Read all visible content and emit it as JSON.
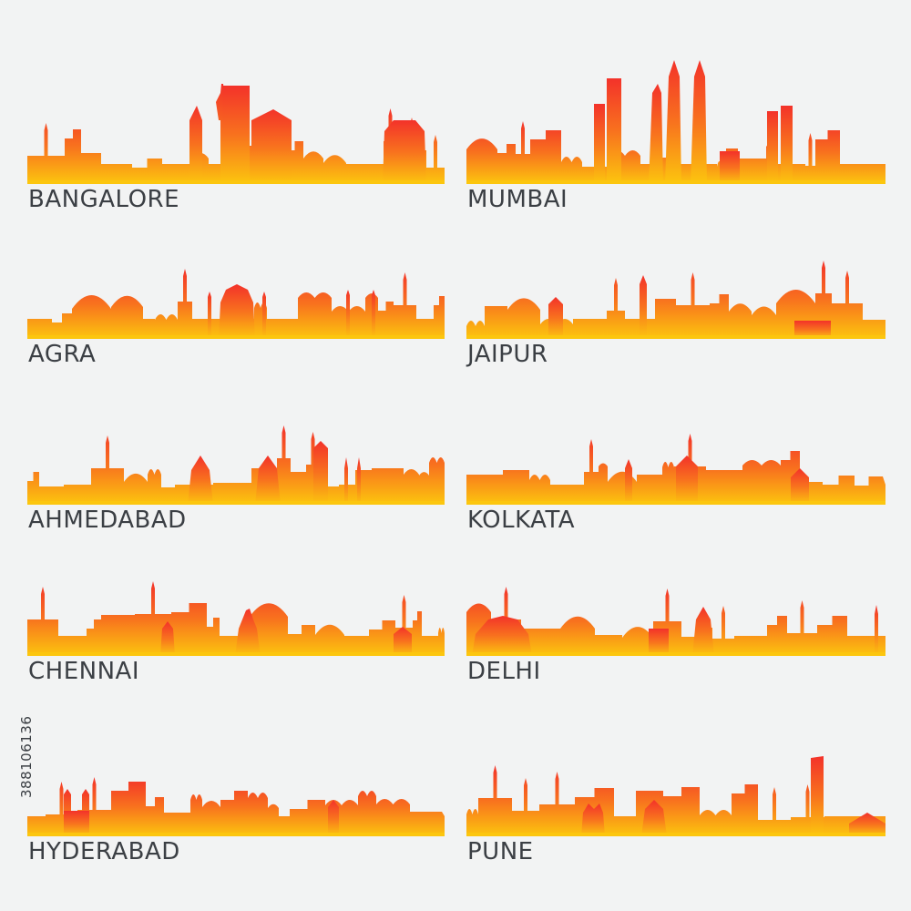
{
  "palette": {
    "background": "#f2f3f3",
    "gradient_top": "#f3322a",
    "gradient_mid": "#f8721e",
    "gradient_bottom": "#fcc60e",
    "label": "#3b3f44"
  },
  "cities": [
    {
      "name": "BANGALORE",
      "column": "left",
      "row": 0,
      "landmarks": [
        "spire",
        "skyscraper",
        "slanted-tower",
        "temple"
      ]
    },
    {
      "name": "MUMBAI",
      "column": "right",
      "row": 0,
      "landmarks": [
        "twin-towers",
        "skyscraper",
        "gateway",
        "domes"
      ]
    },
    {
      "name": "AGRA",
      "column": "left",
      "row": 1,
      "landmarks": [
        "domes",
        "minarets",
        "tomb"
      ]
    },
    {
      "name": "JAIPUR",
      "column": "right",
      "row": 1,
      "landmarks": [
        "tower",
        "palace",
        "arches"
      ]
    },
    {
      "name": "AHMEDABAD",
      "column": "left",
      "row": 2,
      "landmarks": [
        "domes",
        "tower",
        "minarets"
      ]
    },
    {
      "name": "KOLKATA",
      "column": "right",
      "row": 2,
      "landmarks": [
        "bridge",
        "memorial",
        "arch"
      ]
    },
    {
      "name": "CHENNAI",
      "column": "left",
      "row": 3,
      "landmarks": [
        "temple-gopuram",
        "domes",
        "clock-tower"
      ]
    },
    {
      "name": "DELHI",
      "column": "right",
      "row": 3,
      "landmarks": [
        "lotus",
        "india-gate",
        "domes",
        "minaret"
      ]
    },
    {
      "name": "HYDERABAD",
      "column": "left",
      "row": 4,
      "landmarks": [
        "charminar",
        "palaces"
      ]
    },
    {
      "name": "PUNE",
      "column": "right",
      "row": 4,
      "landmarks": [
        "equestrian-statue",
        "skyscraper",
        "domes"
      ]
    }
  ],
  "watermark_id": "388106136"
}
